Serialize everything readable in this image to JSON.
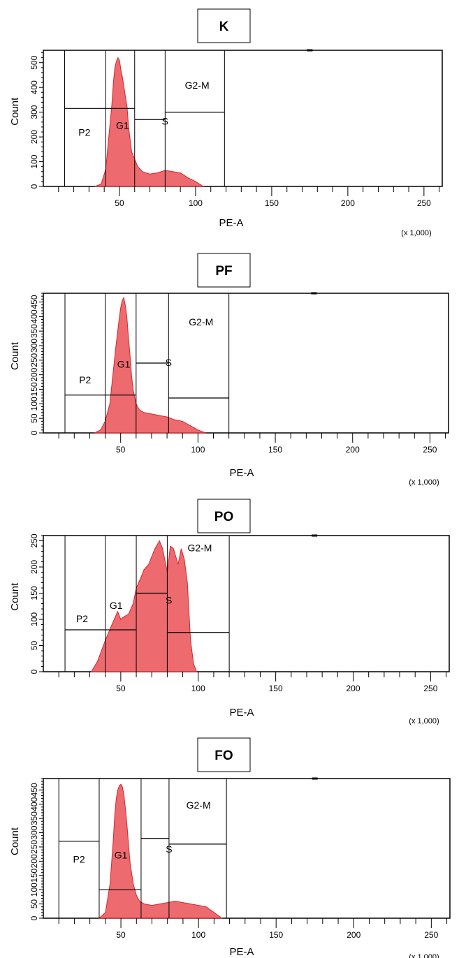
{
  "chart_data": [
    {
      "type": "area",
      "title": "K",
      "xlabel": "PE-A",
      "ylabel": "Count",
      "x_multiplier": "(x 1,000)",
      "xlim": [
        0,
        262
      ],
      "ylim": [
        0,
        550
      ],
      "x_ticks": [
        "50",
        "100",
        "150",
        "200",
        "250"
      ],
      "y_ticks": [
        "0",
        "100",
        "200",
        "300",
        "400",
        "500"
      ],
      "color": "#e8454a",
      "series": [
        {
          "x": [
            34,
            38,
            41,
            43,
            45,
            46,
            47,
            48,
            49,
            50,
            51,
            52,
            53,
            55,
            56,
            57,
            58,
            60,
            62,
            65,
            70,
            75,
            80,
            85,
            90,
            95,
            100,
            103,
            105
          ],
          "y": [
            0,
            10,
            70,
            200,
            330,
            420,
            480,
            505,
            520,
            510,
            470,
            440,
            400,
            320,
            240,
            190,
            140,
            110,
            80,
            60,
            50,
            55,
            65,
            60,
            55,
            35,
            20,
            8,
            0
          ]
        }
      ],
      "gates": [
        {
          "label": "P2",
          "x1": 14,
          "x2": 41,
          "level": 315,
          "label_x": 27,
          "label_y": 205
        },
        {
          "label": "G1",
          "x1": 41,
          "x2": 60,
          "level": 315,
          "label_x": 52,
          "label_y": 232
        },
        {
          "label": "S",
          "x1": 60,
          "x2": 80,
          "level": 270,
          "label_x": 80,
          "label_y": 250
        },
        {
          "label": "G2-M",
          "x1": 80,
          "x2": 119,
          "level": 300,
          "label_x": 101,
          "label_y": 395
        }
      ]
    },
    {
      "type": "area",
      "title": "PF",
      "xlabel": "PE-A",
      "ylabel": "Count",
      "x_multiplier": "(x 1,000)",
      "xlim": [
        0,
        262
      ],
      "ylim": [
        0,
        480
      ],
      "x_ticks": [
        "50",
        "100",
        "150",
        "200",
        "250"
      ],
      "y_ticks": [
        "0",
        "50",
        "100",
        "150",
        "200",
        "250",
        "300",
        "350",
        "400",
        "450"
      ],
      "color": "#e8454a",
      "series": [
        {
          "x": [
            33,
            37,
            40,
            43,
            45,
            47,
            49,
            50,
            51,
            52,
            53,
            54,
            55,
            56,
            57,
            58,
            60,
            62,
            65,
            70,
            75,
            80,
            85,
            90,
            95,
            100,
            105
          ],
          "y": [
            0,
            10,
            40,
            100,
            200,
            300,
            390,
            430,
            455,
            465,
            440,
            400,
            330,
            270,
            200,
            150,
            100,
            80,
            70,
            65,
            60,
            55,
            45,
            40,
            25,
            10,
            0
          ]
        }
      ],
      "gates": [
        {
          "label": "P2",
          "x1": 14,
          "x2": 40,
          "level": 130,
          "label_x": 27,
          "label_y": 170
        },
        {
          "label": "G1",
          "x1": 40,
          "x2": 60,
          "level": 130,
          "label_x": 52,
          "label_y": 225
        },
        {
          "label": "S",
          "x1": 60,
          "x2": 81,
          "level": 240,
          "label_x": 81,
          "label_y": 230
        },
        {
          "label": "G2-M",
          "x1": 81,
          "x2": 120,
          "level": 120,
          "label_x": 102,
          "label_y": 370
        }
      ]
    },
    {
      "type": "area",
      "title": "PO",
      "xlabel": "PE-A",
      "ylabel": "Count",
      "x_multiplier": "(x 1,000)",
      "xlim": [
        0,
        262
      ],
      "ylim": [
        0,
        260
      ],
      "x_ticks": [
        "50",
        "100",
        "150",
        "200",
        "250"
      ],
      "y_ticks": [
        "0",
        "50",
        "100",
        "150",
        "200",
        "250"
      ],
      "color": "#e8454a",
      "series": [
        {
          "x": [
            31,
            35,
            40,
            45,
            48,
            50,
            52,
            55,
            58,
            60,
            63,
            65,
            68,
            70,
            72,
            75,
            77,
            78,
            80,
            82,
            84,
            85,
            87,
            89,
            91,
            93,
            95,
            97,
            99
          ],
          "y": [
            0,
            20,
            60,
            95,
            115,
            100,
            105,
            110,
            130,
            160,
            180,
            195,
            205,
            220,
            235,
            250,
            235,
            220,
            190,
            240,
            235,
            225,
            205,
            235,
            215,
            170,
            60,
            15,
            0
          ]
        }
      ],
      "gates": [
        {
          "label": "P2",
          "x1": 14,
          "x2": 40,
          "level": 80,
          "label_x": 25,
          "label_y": 95
        },
        {
          "label": "G1",
          "x1": 40,
          "x2": 60,
          "level": 80,
          "label_x": 47,
          "label_y": 120
        },
        {
          "label": "S",
          "x1": 60,
          "x2": 80,
          "level": 150,
          "label_x": 81,
          "label_y": 130
        },
        {
          "label": "G2-M",
          "x1": 80,
          "x2": 120,
          "level": 75,
          "label_x": 101,
          "label_y": 230
        }
      ]
    },
    {
      "type": "area",
      "title": "FO",
      "xlabel": "PE-A",
      "ylabel": "Count",
      "x_multiplier": "(x 1,000)",
      "xlim": [
        0,
        262
      ],
      "ylim": [
        0,
        490
      ],
      "x_ticks": [
        "50",
        "100",
        "150",
        "200",
        "250"
      ],
      "y_ticks": [
        "0",
        "50",
        "100",
        "150",
        "200",
        "250",
        "300",
        "350",
        "400",
        "450"
      ],
      "color": "#e8454a",
      "series": [
        {
          "x": [
            36,
            40,
            43,
            45,
            46,
            47,
            48,
            49,
            50,
            51,
            52,
            53,
            54,
            55,
            56,
            58,
            60,
            62,
            65,
            70,
            75,
            80,
            85,
            90,
            95,
            100,
            105,
            110,
            115
          ],
          "y": [
            0,
            20,
            120,
            270,
            360,
            420,
            450,
            465,
            470,
            460,
            430,
            380,
            320,
            250,
            190,
            120,
            80,
            60,
            50,
            45,
            50,
            55,
            60,
            55,
            50,
            45,
            40,
            20,
            0
          ]
        }
      ],
      "gates": [
        {
          "label": "P2",
          "x1": 10,
          "x2": 36,
          "level": 270,
          "label_x": 23,
          "label_y": 195
        },
        {
          "label": "G1",
          "x1": 36,
          "x2": 63,
          "level": 100,
          "label_x": 50,
          "label_y": 210
        },
        {
          "label": "S",
          "x1": 63,
          "x2": 81,
          "level": 280,
          "label_x": 81,
          "label_y": 230
        },
        {
          "label": "G2-M",
          "x1": 81,
          "x2": 118,
          "level": 260,
          "label_x": 100,
          "label_y": 385
        }
      ]
    }
  ]
}
